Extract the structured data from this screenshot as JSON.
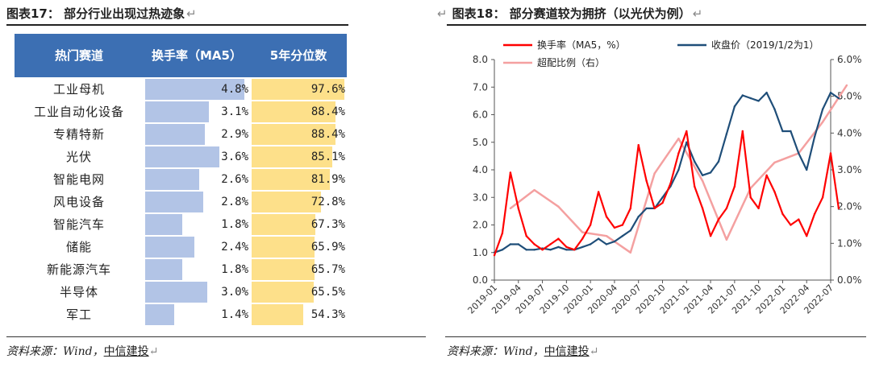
{
  "left": {
    "title": "图表17：  部分行业出现过热迹象",
    "return_mark": "↵",
    "table": {
      "headers": [
        "热门赛道",
        "换手率（MA5）",
        "5年分位数"
      ],
      "rows": [
        {
          "name": "工业母机",
          "turnover": "4.8%",
          "percentile": "97.6%"
        },
        {
          "name": "工业自动化设备",
          "turnover": "3.1%",
          "percentile": "88.4%"
        },
        {
          "name": "专精特新",
          "turnover": "2.9%",
          "percentile": "88.4%"
        },
        {
          "name": "光伏",
          "turnover": "3.6%",
          "percentile": "85.1%"
        },
        {
          "name": "智能电网",
          "turnover": "2.6%",
          "percentile": "81.9%"
        },
        {
          "name": "风电设备",
          "turnover": "2.8%",
          "percentile": "72.8%"
        },
        {
          "name": "智能汽车",
          "turnover": "1.8%",
          "percentile": "67.3%"
        },
        {
          "name": "储能",
          "turnover": "2.4%",
          "percentile": "65.9%"
        },
        {
          "name": "新能源汽车",
          "turnover": "1.8%",
          "percentile": "65.7%"
        },
        {
          "name": "半导体",
          "turnover": "3.0%",
          "percentile": "65.5%"
        },
        {
          "name": "军工",
          "turnover": "1.4%",
          "percentile": "54.3%"
        }
      ]
    },
    "source_prefix": "资料来源：Wind，",
    "source_company": "中信建投"
  },
  "right": {
    "title": "图表18：  部分赛道较为拥挤（以光伏为例）",
    "return_mark": "↵",
    "source_prefix": "资料来源：Wind，",
    "source_company": "中信建投"
  },
  "chart_data": [
    {
      "type": "table",
      "columns": [
        "热门赛道",
        "换手率（MA5）",
        "5年分位数"
      ],
      "turnover_pct": [
        4.8,
        3.1,
        2.9,
        3.6,
        2.6,
        2.8,
        1.8,
        2.4,
        1.8,
        3.0,
        1.4
      ],
      "percentile_pct": [
        97.6,
        88.4,
        88.4,
        85.1,
        81.9,
        72.8,
        67.3,
        65.9,
        65.7,
        65.5,
        54.3
      ],
      "colors": {
        "header": "#3c6fb3",
        "turnover_bar": "#b2c4e6",
        "percentile_bar": "#fde08a"
      }
    },
    {
      "type": "line",
      "x_tick_labels": [
        "2019-01",
        "2019-04",
        "2019-07",
        "2019-10",
        "2020-01",
        "2020-04",
        "2020-07",
        "2020-10",
        "2021-01",
        "2021-04",
        "2021-07",
        "2021-10",
        "2022-01",
        "2022-04",
        "2022-07"
      ],
      "y_left_ticks": [
        "0.0",
        "1.0",
        "2.0",
        "3.0",
        "4.0",
        "5.0",
        "6.0",
        "7.0",
        "8.0"
      ],
      "y_right_ticks": [
        "0.0%",
        "1.0%",
        "2.0%",
        "3.0%",
        "4.0%",
        "5.0%",
        "6.0%"
      ],
      "ylim_left": [
        0,
        8
      ],
      "ylim_right": [
        0,
        6
      ],
      "legend_position": "top",
      "series": [
        {
          "name": "换手率（MA5，%）",
          "color": "#ff0000",
          "axis": "left",
          "points": [
            [
              "2019-01",
              0.9
            ],
            [
              "2019-02",
              1.7
            ],
            [
              "2019-03",
              3.9
            ],
            [
              "2019-04",
              2.6
            ],
            [
              "2019-05",
              1.6
            ],
            [
              "2019-06",
              1.3
            ],
            [
              "2019-07",
              1.1
            ],
            [
              "2019-08",
              1.3
            ],
            [
              "2019-09",
              1.5
            ],
            [
              "2019-10",
              1.2
            ],
            [
              "2019-11",
              1.1
            ],
            [
              "2019-12",
              1.5
            ],
            [
              "2020-01",
              2.0
            ],
            [
              "2020-02",
              3.2
            ],
            [
              "2020-03",
              2.3
            ],
            [
              "2020-04",
              1.9
            ],
            [
              "2020-05",
              2.0
            ],
            [
              "2020-06",
              2.6
            ],
            [
              "2020-07",
              4.9
            ],
            [
              "2020-08",
              3.6
            ],
            [
              "2020-09",
              2.6
            ],
            [
              "2020-10",
              2.8
            ],
            [
              "2020-11",
              3.5
            ],
            [
              "2020-12",
              4.6
            ],
            [
              "2021-01",
              5.4
            ],
            [
              "2021-02",
              3.4
            ],
            [
              "2021-03",
              2.6
            ],
            [
              "2021-04",
              1.6
            ],
            [
              "2021-05",
              2.2
            ],
            [
              "2021-06",
              2.6
            ],
            [
              "2021-07",
              3.4
            ],
            [
              "2021-08",
              5.4
            ],
            [
              "2021-09",
              3.0
            ],
            [
              "2021-10",
              2.6
            ],
            [
              "2021-11",
              3.8
            ],
            [
              "2021-12",
              3.2
            ],
            [
              "2022-01",
              2.4
            ],
            [
              "2022-02",
              2.0
            ],
            [
              "2022-03",
              2.2
            ],
            [
              "2022-04",
              1.6
            ],
            [
              "2022-05",
              2.4
            ],
            [
              "2022-06",
              3.0
            ],
            [
              "2022-07",
              4.6
            ],
            [
              "2022-08",
              2.6
            ]
          ]
        },
        {
          "name": "收盘价（2019/1/2为1）",
          "color": "#1f4e79",
          "axis": "left",
          "points": [
            [
              "2019-01",
              1.0
            ],
            [
              "2019-02",
              1.1
            ],
            [
              "2019-03",
              1.3
            ],
            [
              "2019-04",
              1.3
            ],
            [
              "2019-05",
              1.1
            ],
            [
              "2019-06",
              1.1
            ],
            [
              "2019-07",
              1.15
            ],
            [
              "2019-08",
              1.1
            ],
            [
              "2019-09",
              1.2
            ],
            [
              "2019-10",
              1.1
            ],
            [
              "2019-11",
              1.1
            ],
            [
              "2019-12",
              1.2
            ],
            [
              "2020-01",
              1.3
            ],
            [
              "2020-02",
              1.5
            ],
            [
              "2020-03",
              1.3
            ],
            [
              "2020-04",
              1.4
            ],
            [
              "2020-05",
              1.6
            ],
            [
              "2020-06",
              1.8
            ],
            [
              "2020-07",
              2.3
            ],
            [
              "2020-08",
              2.6
            ],
            [
              "2020-09",
              2.6
            ],
            [
              "2020-10",
              3.0
            ],
            [
              "2020-11",
              3.4
            ],
            [
              "2020-12",
              4.0
            ],
            [
              "2021-01",
              5.0
            ],
            [
              "2021-02",
              4.3
            ],
            [
              "2021-03",
              3.8
            ],
            [
              "2021-04",
              3.9
            ],
            [
              "2021-05",
              4.3
            ],
            [
              "2021-06",
              5.3
            ],
            [
              "2021-07",
              6.3
            ],
            [
              "2021-08",
              6.7
            ],
            [
              "2021-09",
              6.6
            ],
            [
              "2021-10",
              6.5
            ],
            [
              "2021-11",
              6.8
            ],
            [
              "2021-12",
              6.2
            ],
            [
              "2022-01",
              5.4
            ],
            [
              "2022-02",
              5.4
            ],
            [
              "2022-03",
              4.6
            ],
            [
              "2022-04",
              4.0
            ],
            [
              "2022-05",
              5.2
            ],
            [
              "2022-06",
              6.2
            ],
            [
              "2022-07",
              6.8
            ],
            [
              "2022-08",
              6.6
            ]
          ]
        },
        {
          "name": "超配比例（右）",
          "color": "#f4a0a0",
          "axis": "right",
          "points": [
            [
              "2019-03",
              1.95
            ],
            [
              "2019-06",
              2.45
            ],
            [
              "2019-09",
              2.0
            ],
            [
              "2019-12",
              1.3
            ],
            [
              "2020-03",
              1.2
            ],
            [
              "2020-06",
              0.75
            ],
            [
              "2020-09",
              2.9
            ],
            [
              "2020-12",
              3.85
            ],
            [
              "2021-03",
              2.7
            ],
            [
              "2021-06",
              1.1
            ],
            [
              "2021-09",
              2.5
            ],
            [
              "2021-12",
              3.2
            ],
            [
              "2022-03",
              3.45
            ],
            [
              "2022-06",
              4.3
            ],
            [
              "2022-09",
              5.3
            ]
          ]
        }
      ]
    }
  ]
}
